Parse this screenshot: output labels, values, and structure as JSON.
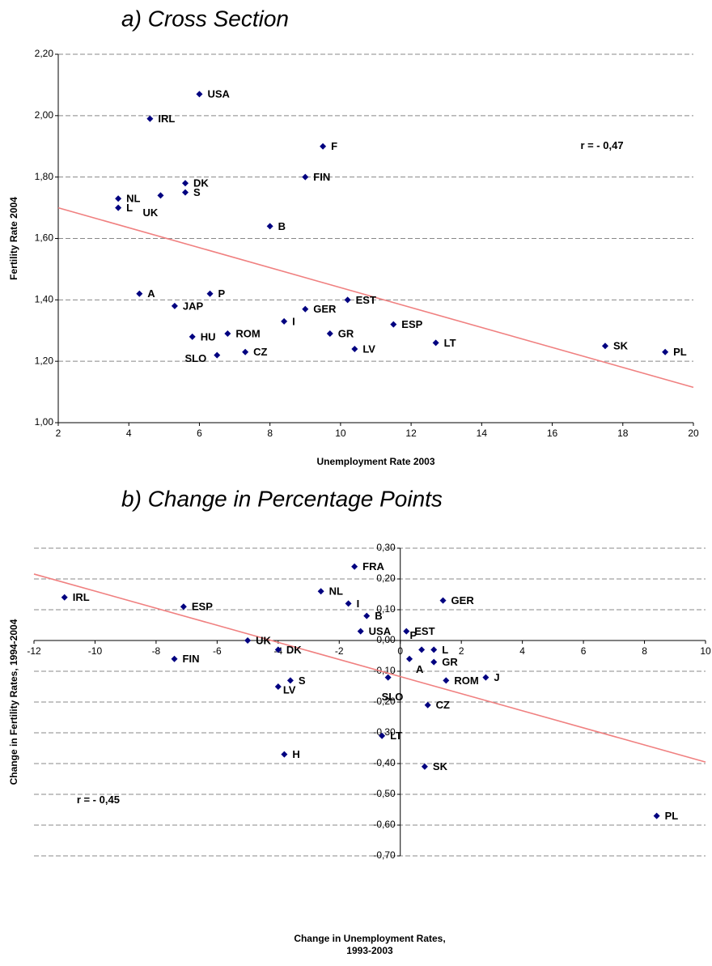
{
  "chart_data": [
    {
      "type": "scatter",
      "title": "a) Cross Section",
      "xlabel": [
        "Unemployment Rate 2003"
      ],
      "ylabel": "Fertility Rate 2004",
      "xlim": [
        2,
        20
      ],
      "xticks": [
        2,
        4,
        6,
        8,
        10,
        12,
        14,
        16,
        18,
        20
      ],
      "ylim": [
        1.0,
        2.2
      ],
      "yticks": [
        {
          "value": 1.0,
          "label": "1,00"
        },
        {
          "value": 1.2,
          "label": "1,20"
        },
        {
          "value": 1.4,
          "label": "1,40"
        },
        {
          "value": 1.6,
          "label": "1,60"
        },
        {
          "value": 1.8,
          "label": "1,80"
        },
        {
          "value": 2.0,
          "label": "2,00"
        },
        {
          "value": 2.2,
          "label": "2,20"
        }
      ],
      "grid": true,
      "color": "#000080",
      "labels": [
        "USA",
        "IRL",
        "F",
        "FIN",
        "DK",
        "S",
        "UK",
        "NL",
        "L",
        "B",
        "A",
        "P",
        "JAP",
        "EST",
        "GER",
        "I",
        "ESP",
        "GR",
        "ROM",
        "HU",
        "LT",
        "SK",
        "LV",
        "CZ",
        "PL",
        "SLO"
      ],
      "x": [
        6.0,
        4.6,
        9.5,
        9.0,
        5.6,
        5.6,
        4.9,
        3.7,
        3.7,
        8.0,
        4.3,
        6.3,
        5.3,
        10.2,
        9.0,
        8.4,
        11.5,
        9.7,
        6.8,
        5.8,
        12.7,
        17.5,
        10.4,
        7.3,
        19.2,
        6.5
      ],
      "y": [
        2.07,
        1.99,
        1.9,
        1.8,
        1.78,
        1.75,
        1.74,
        1.73,
        1.7,
        1.64,
        1.42,
        1.42,
        1.38,
        1.4,
        1.37,
        1.33,
        1.32,
        1.29,
        1.29,
        1.28,
        1.26,
        1.25,
        1.24,
        1.23,
        1.23,
        1.22
      ],
      "trendline": {
        "x": [
          2,
          20
        ],
        "y": [
          1.7,
          1.115
        ],
        "color": "#f08080"
      },
      "annotation": {
        "text": "r = - 0,47",
        "x": 16.8,
        "y": 1.9
      }
    },
    {
      "type": "scatter",
      "title": "b) Change in Percentage Points",
      "xlabel": [
        "Change in Unemployment Rates,",
        "1993-2003"
      ],
      "ylabel": "Change in Fertility Rates, 1994-2004",
      "xlim": [
        -12,
        10
      ],
      "xticks": [
        -12,
        -10,
        -8,
        -6,
        -4,
        -2,
        0,
        2,
        4,
        6,
        8,
        10
      ],
      "ylim": [
        -0.7,
        0.3
      ],
      "yticks": [
        {
          "value": -0.7,
          "label": "-0,70"
        },
        {
          "value": -0.6,
          "label": "-0,60"
        },
        {
          "value": -0.5,
          "label": "-0,50"
        },
        {
          "value": -0.4,
          "label": "-0,40"
        },
        {
          "value": -0.3,
          "label": "-0,30"
        },
        {
          "value": -0.2,
          "label": "-0,20"
        },
        {
          "value": -0.1,
          "label": "-0,10"
        },
        {
          "value": 0,
          "label": "0,00"
        },
        {
          "value": 0.1,
          "label": "0,10"
        },
        {
          "value": 0.2,
          "label": "0,20"
        },
        {
          "value": 0.3,
          "label": "0,30"
        }
      ],
      "grid": true,
      "color": "#000080",
      "labels": [
        "IRL",
        "FRA",
        "NL",
        "I",
        "ESP",
        "GER",
        "B",
        "USA",
        "EST",
        "UK",
        "DK",
        "FIN",
        "A",
        "P",
        "L",
        "GR",
        "ROM",
        "J",
        "LV",
        "S",
        "SLO",
        "CZ",
        "LT",
        "H",
        "SK",
        "PL"
      ],
      "x": [
        -11.0,
        -1.5,
        -2.6,
        -1.7,
        -7.1,
        1.4,
        -1.1,
        -1.3,
        0.2,
        -5.0,
        -4.0,
        -7.4,
        0.3,
        0.7,
        1.1,
        1.1,
        1.5,
        2.8,
        -4.0,
        -3.6,
        -0.4,
        0.9,
        -0.6,
        -3.8,
        0.8,
        8.4
      ],
      "y": [
        0.14,
        0.24,
        0.16,
        0.12,
        0.11,
        0.13,
        0.08,
        0.03,
        0.03,
        0.0,
        -0.03,
        -0.06,
        -0.06,
        -0.03,
        -0.03,
        -0.07,
        -0.13,
        -0.12,
        -0.15,
        -0.13,
        -0.12,
        -0.21,
        -0.31,
        -0.37,
        -0.41,
        -0.57
      ],
      "trendline": {
        "x": [
          -12,
          10
        ],
        "y": [
          0.216,
          -0.395
        ],
        "color": "#f08080"
      },
      "annotation": {
        "text": "r = - 0,45",
        "x": -10.6,
        "y": -0.52
      }
    }
  ]
}
